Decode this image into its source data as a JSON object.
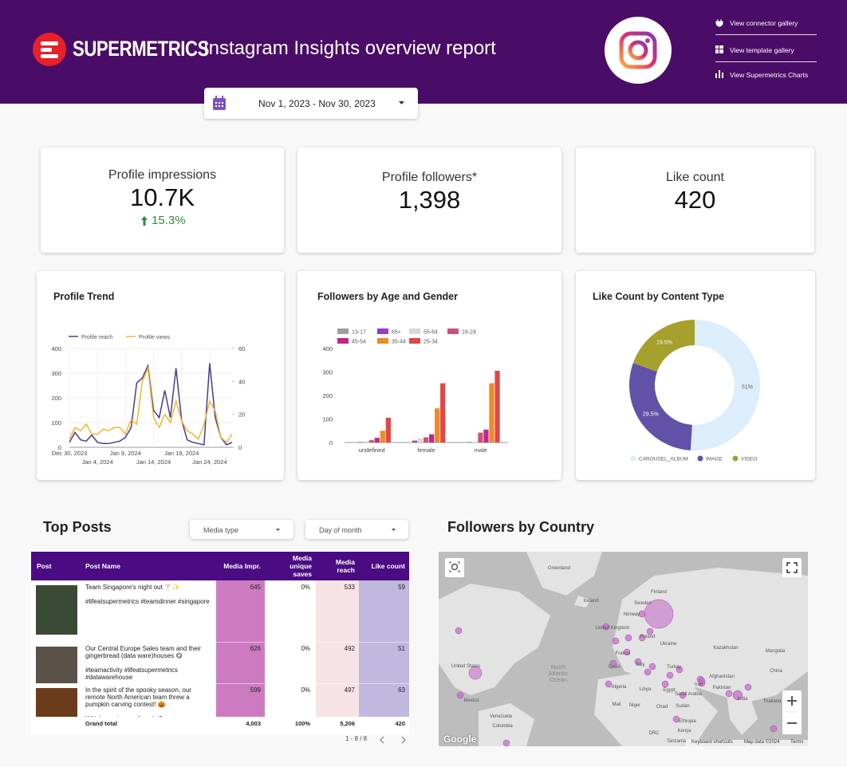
{
  "header": {
    "brand": "SUPERMETRICS",
    "title": "Instagram Insights overview report",
    "date_range": "Nov 1, 2023 - Nov 30, 2023",
    "links": [
      "View connector gallery",
      "View template gallery",
      "View Supermetrics Charts"
    ]
  },
  "kpis": [
    {
      "label": "Profile impressions",
      "value": "10.7K",
      "change": "15.3%"
    },
    {
      "label": "Profile followers*",
      "value": "1,398"
    },
    {
      "label": "Like count",
      "value": "420"
    }
  ],
  "chart_data": [
    {
      "type": "line",
      "title": "Profile Trend",
      "categories": [
        "Dec 30, 2023",
        null,
        null,
        null,
        null,
        "Jan 4, 2024",
        null,
        null,
        null,
        null,
        "Jan 9, 2024",
        null,
        null,
        null,
        null,
        "Jan 14, 2024",
        null,
        null,
        null,
        null,
        "Jan 19, 2024",
        null,
        null,
        null,
        null,
        "Jan 24, 2024",
        null,
        null,
        null,
        null
      ],
      "series": [
        {
          "name": "Profile reach",
          "color": "#4b3b8f",
          "values": [
            20,
            60,
            30,
            25,
            50,
            20,
            15,
            15,
            20,
            25,
            40,
            80,
            260,
            280,
            330,
            150,
            120,
            230,
            120,
            320,
            110,
            30,
            20,
            15,
            10,
            340,
            120,
            40,
            10,
            20
          ]
        },
        {
          "name": "Profile views",
          "color": "#f2b632",
          "axis": "y2",
          "values": [
            5,
            12,
            10,
            14,
            8,
            8,
            11,
            10,
            12,
            12,
            8,
            17,
            14,
            40,
            48,
            18,
            12,
            20,
            15,
            28,
            16,
            10,
            8,
            5,
            14,
            28,
            22,
            6,
            3,
            8
          ]
        }
      ],
      "ylim": [
        0,
        400
      ],
      "yticks": [
        0,
        100,
        200,
        300,
        400
      ],
      "y2lim": [
        0,
        60
      ],
      "y2ticks": [
        0,
        20,
        40,
        60
      ]
    },
    {
      "type": "bar",
      "title": "Followers by Age and Gender",
      "categories": [
        "undefined",
        "female",
        "male"
      ],
      "series": [
        {
          "name": "13-17",
          "color": "#9e9e9e",
          "values": [
            1,
            1,
            1
          ]
        },
        {
          "name": "65+",
          "color": "#8e3fce",
          "values": [
            2,
            8,
            2
          ]
        },
        {
          "name": "55-64",
          "color": "#d9d9d9",
          "values": [
            5,
            18,
            3
          ]
        },
        {
          "name": "18-24",
          "color": "#d0507a",
          "values": [
            10,
            22,
            42
          ]
        },
        {
          "name": "45-54",
          "color": "#c2268a",
          "values": [
            20,
            35,
            55
          ]
        },
        {
          "name": "35-44",
          "color": "#f08a24",
          "values": [
            50,
            145,
            252
          ]
        },
        {
          "name": "25-34",
          "color": "#e24646",
          "values": [
            105,
            252,
            305
          ]
        }
      ],
      "ylim": [
        0,
        400
      ],
      "yticks": [
        0,
        100,
        200,
        300,
        400
      ]
    },
    {
      "type": "pie",
      "title": "Like Count by Content Type",
      "categories": [
        "CAROUSEL_ALBUM",
        "IMAGE",
        "VIDEO"
      ],
      "values": [
        51,
        29.5,
        19.5
      ],
      "value_labels": [
        "51%",
        "29.5%",
        "19.5%"
      ],
      "colors": [
        "#dcedfb",
        "#6152a8",
        "#a6a02c"
      ]
    }
  ],
  "top_posts": {
    "title": "Top Posts",
    "filters": [
      "Media type",
      "Day of month"
    ],
    "columns": [
      "Post",
      "Post Name",
      "Media Impr.",
      "Media unique saves",
      "Media reach",
      "Like count"
    ],
    "rows": [
      {
        "name": [
          "Team Singapore's night out 🍸✨",
          "#lifeatsupermetrics #teamdinner #singapore"
        ],
        "cells": [
          "645",
          "0%",
          "533",
          "59"
        ]
      },
      {
        "name": [
          "Our Central Europe Sales team and their gingerbread (data ware)houses 😋",
          "#teamactivity #lifeatsupermetrics #datawarehouse"
        ],
        "cells": [
          "626",
          "0%",
          "492",
          "51"
        ]
      },
      {
        "name": [
          "In the spirit of the spooky season, our remote North American team threw a pumpkin carving contest! 🎃",
          "Which one is your favorite?"
        ],
        "cells": [
          "599",
          "0%",
          "497",
          "63"
        ]
      }
    ],
    "total": [
      "Grand total",
      "4,003",
      "100%",
      "5,206",
      "420"
    ],
    "pagination": "1 - 8 / 8"
  },
  "map": {
    "title": "Followers by Country",
    "labels": [
      "Greenland",
      "Iceland",
      "Finland",
      "Sweden",
      "Norway",
      "United Kingdom",
      "Poland",
      "Ukraine",
      "Kazakhstan",
      "Mongolia",
      "France",
      "Spain",
      "Italy",
      "Turkey",
      "China",
      "Afghanistan",
      "Iran",
      "Pakistan",
      "Algeria",
      "Libya",
      "Egypt",
      "Saudi Arabia",
      "India",
      "Mali",
      "Niger",
      "Chad",
      "Sudan",
      "Thailand",
      "Ethiopia",
      "Kenya",
      "DRC",
      "Tanzania",
      "United States",
      "Mexico",
      "Venezuela",
      "Colombia",
      "North Atlantic Ocean"
    ],
    "attribution": [
      "Google",
      "Keyboard shortcuts",
      "Map data ©2024",
      "Terms"
    ]
  }
}
